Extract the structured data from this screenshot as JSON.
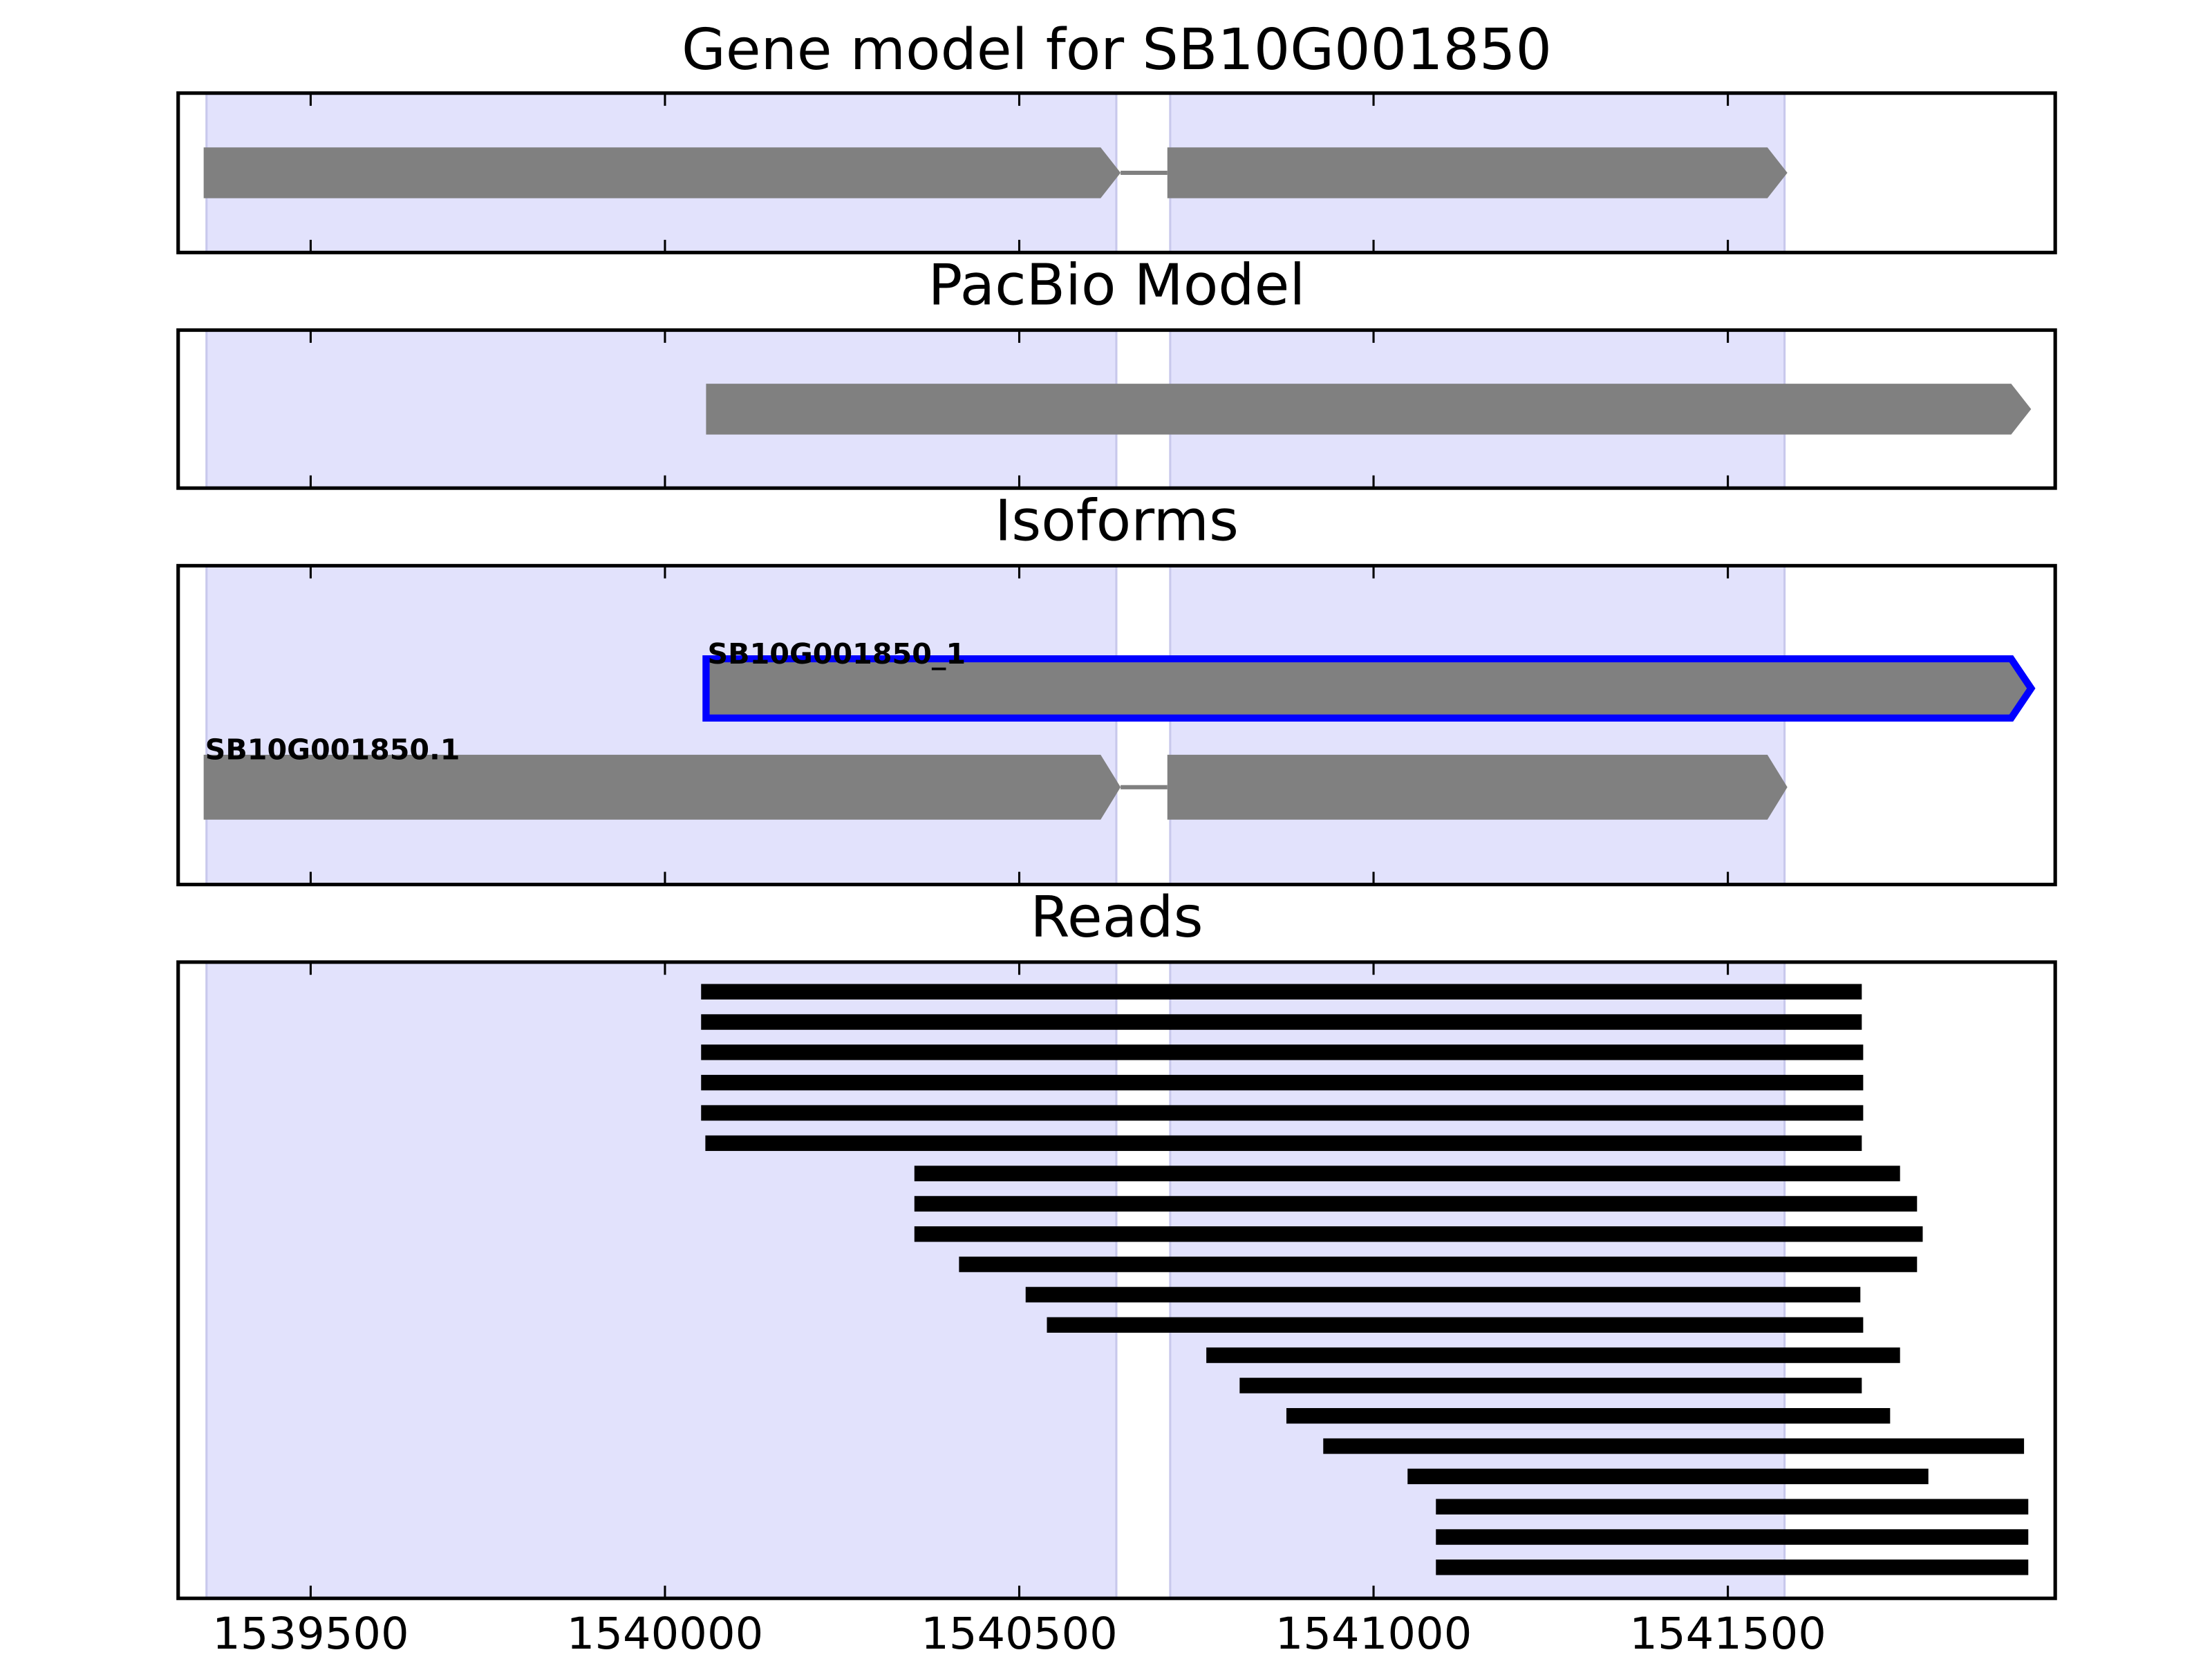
{
  "chart_data": [
    {
      "type": "gene-track",
      "title": "Gene model for SB10G001850",
      "xlim": [
        1539313,
        1541962
      ],
      "xticks": [
        1539500,
        1540000,
        1540500,
        1541000,
        1541500
      ],
      "highlight_regions": [
        [
          1539353,
          1540637
        ],
        [
          1540713,
          1541580
        ]
      ],
      "highlight_color": "#e2e2fc",
      "color": "#808080",
      "features": [
        {
          "exons": [
            [
              1539349,
              1540643
            ],
            [
              1540709,
              1541584
            ]
          ]
        }
      ]
    },
    {
      "type": "gene-track",
      "title": "PacBio Model",
      "xlim": [
        1539313,
        1541962
      ],
      "xticks": [
        1539500,
        1540000,
        1540500,
        1541000,
        1541500
      ],
      "highlight_regions": [
        [
          1539353,
          1540637
        ],
        [
          1540713,
          1541580
        ]
      ],
      "highlight_color": "#e2e2fc",
      "color": "#808080",
      "features": [
        {
          "exons": [
            [
              1540058,
              1541928
            ]
          ]
        }
      ]
    },
    {
      "type": "gene-track",
      "title": "Isoforms",
      "xlim": [
        1539313,
        1541962
      ],
      "xticks": [
        1539500,
        1540000,
        1540500,
        1541000,
        1541500
      ],
      "highlight_regions": [
        [
          1539353,
          1540637
        ],
        [
          1540713,
          1541580
        ]
      ],
      "highlight_color": "#e2e2fc",
      "color": "#808080",
      "outline_color": "#0000ff",
      "features": [
        {
          "name": "SB10G001850_1",
          "exons": [
            [
              1540058,
              1541928
            ]
          ],
          "outlined": true
        },
        {
          "name": "SB10G001850.1",
          "exons": [
            [
              1539349,
              1540643
            ],
            [
              1540709,
              1541584
            ]
          ]
        }
      ]
    },
    {
      "type": "reads",
      "title": "Reads",
      "xlim": [
        1539313,
        1541962
      ],
      "xticks": [
        1539500,
        1540000,
        1540500,
        1541000,
        1541500
      ],
      "highlight_regions": [
        [
          1539353,
          1540637
        ],
        [
          1540713,
          1541580
        ]
      ],
      "highlight_color": "#e2e2fc",
      "color": "#000000",
      "reads": [
        [
          1540051,
          1541689
        ],
        [
          1540051,
          1541689
        ],
        [
          1540051,
          1541691
        ],
        [
          1540051,
          1541691
        ],
        [
          1540051,
          1541691
        ],
        [
          1540057,
          1541689
        ],
        [
          1540352,
          1541743
        ],
        [
          1540352,
          1541767
        ],
        [
          1540352,
          1541775
        ],
        [
          1540415,
          1541767
        ],
        [
          1540509,
          1541687
        ],
        [
          1540539,
          1541691
        ],
        [
          1540764,
          1541743
        ],
        [
          1540811,
          1541689
        ],
        [
          1540877,
          1541729
        ],
        [
          1540929,
          1541918
        ],
        [
          1541048,
          1541783
        ],
        [
          1541088,
          1541924
        ],
        [
          1541088,
          1541924
        ],
        [
          1541088,
          1541924
        ]
      ]
    }
  ]
}
